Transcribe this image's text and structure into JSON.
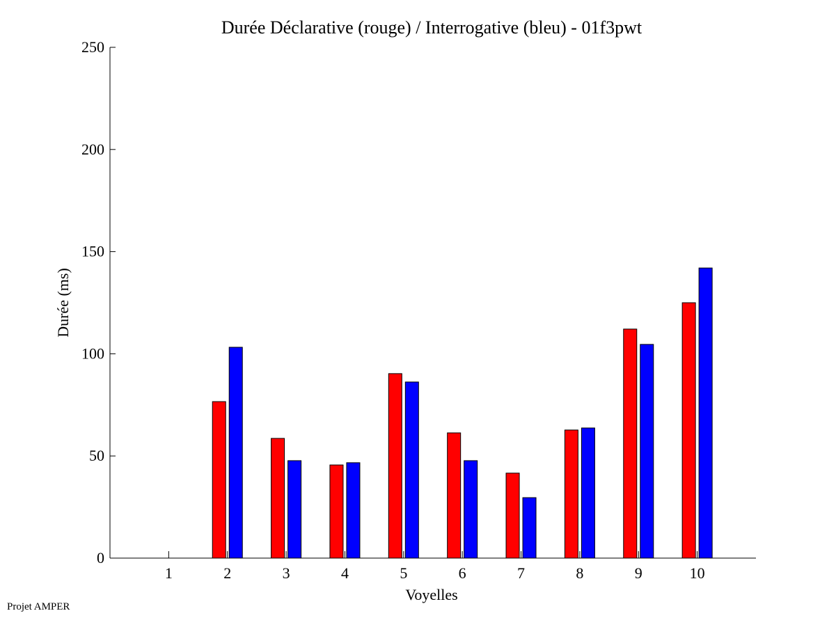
{
  "chart_data": {
    "type": "bar",
    "title": "Durée Déclarative (rouge) / Interrogative (bleu) - 01f3pwt",
    "xlabel": "Voyelles",
    "ylabel": "Durée (ms)",
    "categories": [
      "1",
      "2",
      "3",
      "4",
      "5",
      "6",
      "7",
      "8",
      "9",
      "10"
    ],
    "series": [
      {
        "name": "Déclarative",
        "color": "#ff0000",
        "values": [
          0,
          76.6,
          58.6,
          45.6,
          90.3,
          61.3,
          41.6,
          62.7,
          112.1,
          125.0
        ]
      },
      {
        "name": "Interrogative",
        "color": "#0000ff",
        "values": [
          0,
          103.2,
          47.7,
          46.7,
          86.2,
          47.7,
          29.6,
          63.7,
          104.6,
          142.0
        ]
      }
    ],
    "xlim": [
      0,
      11
    ],
    "ylim": [
      0,
      250
    ],
    "yticks": [
      0,
      50,
      100,
      150,
      200,
      250
    ],
    "grid": false,
    "legend": "none"
  },
  "footer": "Projet AMPER"
}
